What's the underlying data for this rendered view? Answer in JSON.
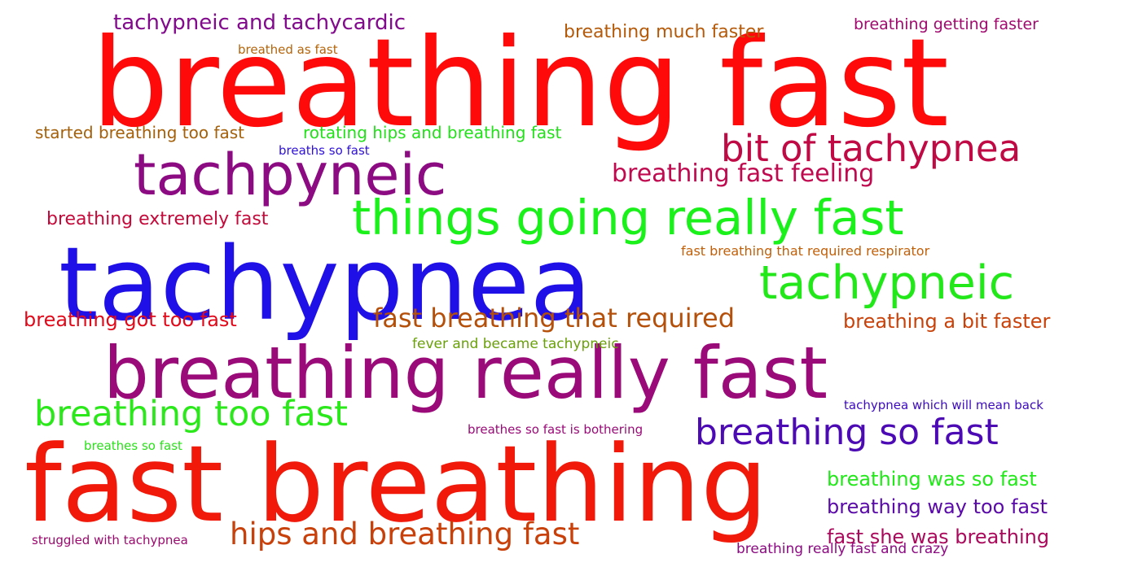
{
  "words": [
    {
      "text": "breathing fast",
      "color": "#ff0a0a"
    },
    {
      "text": "fast breathing",
      "color": "#f0190a"
    },
    {
      "text": "tachypnea",
      "color": "#2010e8"
    },
    {
      "text": "breathing really fast",
      "color": "#9a0a78"
    },
    {
      "text": "tachpyneic",
      "color": "#8c0a82"
    },
    {
      "text": "things going really fast",
      "color": "#1af01a"
    },
    {
      "text": "tachypneic",
      "color": "#22e81a"
    },
    {
      "text": "bit of tachypnea",
      "color": "#c00a46"
    },
    {
      "text": "breathing so fast",
      "color": "#4c0ab4"
    },
    {
      "text": "breathing too fast",
      "color": "#2ae81a"
    },
    {
      "text": "hips and breathing fast",
      "color": "#c8400a"
    },
    {
      "text": "fast breathing that required",
      "color": "#b4500a"
    },
    {
      "text": "breathing fast feeling",
      "color": "#c00a50"
    },
    {
      "text": "tachypneic and tachycardic",
      "color": "#820a8c"
    },
    {
      "text": "breathing much faster",
      "color": "#b45a0a"
    },
    {
      "text": "breathing getting faster",
      "color": "#a00a6e"
    },
    {
      "text": "breathed as fast",
      "color": "#b4640a"
    },
    {
      "text": "started breathing too fast",
      "color": "#a4600a"
    },
    {
      "text": "rotating hips and breathing fast",
      "color": "#22e01a"
    },
    {
      "text": "breaths so fast",
      "color": "#2e10d8"
    },
    {
      "text": "breathing extremely fast",
      "color": "#c40a3a"
    },
    {
      "text": "fast breathing that required respirator",
      "color": "#c0600a"
    },
    {
      "text": "breathing got too fast",
      "color": "#e00a1a"
    },
    {
      "text": "breathing a bit faster",
      "color": "#c8420a"
    },
    {
      "text": "fever and became tachypneic",
      "color": "#6aa00a"
    },
    {
      "text": "tachypnea which will mean back",
      "color": "#3c0ac0"
    },
    {
      "text": "breathes so fast is bothering",
      "color": "#9a0a78"
    },
    {
      "text": "breathes so fast",
      "color": "#2ae01a"
    },
    {
      "text": "breathing was so fast",
      "color": "#22e81a"
    },
    {
      "text": "breathing way too fast",
      "color": "#5a0aa8"
    },
    {
      "text": "fast she was breathing",
      "color": "#aa0a5c"
    },
    {
      "text": "struggled with tachypnea",
      "color": "#9a0a6e"
    },
    {
      "text": "breathing really fast and crazy",
      "color": "#8c0a82"
    }
  ]
}
